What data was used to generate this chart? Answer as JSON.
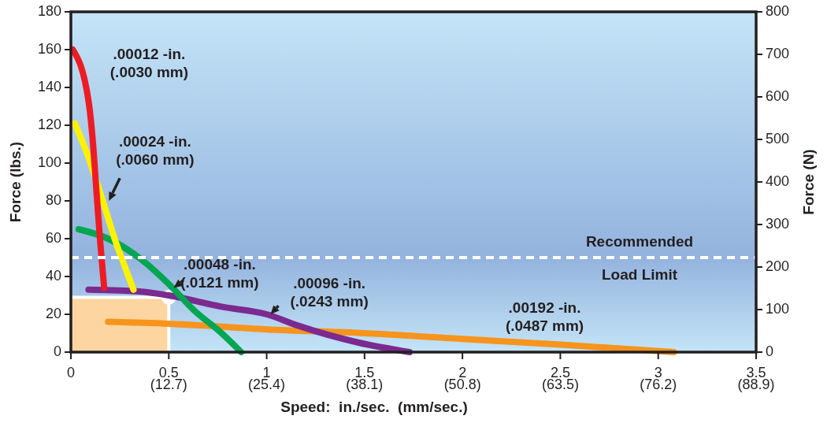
{
  "chart_data": {
    "type": "line",
    "xlabel": "Speed:  in./sec.  (mm/sec.)",
    "ylabel": "Force (lbs.)",
    "y2label": "Force (N)",
    "xlim": [
      0,
      3.5
    ],
    "ylim": [
      0,
      180
    ],
    "y2lim": [
      0,
      800
    ],
    "xticks": [
      0,
      0.5,
      1,
      1.5,
      2,
      2.5,
      3,
      3.5
    ],
    "x2lim": [
      0,
      88.9
    ],
    "x2ticks": [
      {
        "value": 12.7,
        "label": "(12.7)"
      },
      {
        "value": 25.4,
        "label": "(25.4)"
      },
      {
        "value": 38.1,
        "label": "(38.1)"
      },
      {
        "value": 50.8,
        "label": "(50.8)"
      },
      {
        "value": 63.5,
        "label": "(63.5)"
      },
      {
        "value": 76.2,
        "label": "(76.2)"
      },
      {
        "value": 88.9,
        "label": "(88.9)"
      }
    ],
    "yticks": [
      0,
      20,
      40,
      60,
      80,
      100,
      120,
      140,
      160,
      180
    ],
    "y2ticks": [
      0,
      100,
      200,
      300,
      400,
      500,
      600,
      700,
      800
    ],
    "grid": false,
    "marker": "none",
    "line_style": "solid",
    "ref_lines": [
      {
        "axis": "y",
        "value": 50,
        "label": "Recommended\nLoad Limit",
        "color": "#ffffff",
        "line_style": "dashed"
      }
    ],
    "series": [
      {
        "type": "area",
        "color": "#fcd5a0",
        "x": [
          0,
          0.5
        ],
        "values": [
          29,
          29
        ]
      },
      {
        "type": "scatter",
        "color": "#ffffff",
        "x": [
          0.5
        ],
        "values": [
          29
        ],
        "marker": "circle"
      },
      {
        "name": ".00192 -in.\n(.0487 mm)",
        "color": "#f7941d",
        "x": [
          0.19,
          0.5,
          1,
          1.5,
          2,
          2.5,
          3.08
        ],
        "values": [
          16,
          15,
          12,
          10,
          7,
          4,
          0
        ]
      },
      {
        "name": ".00096 -in.\n(.0243 mm)",
        "color": "#7b2a90",
        "x": [
          0.09,
          0.36,
          0.5,
          0.77,
          1,
          1.16,
          1.47,
          1.73
        ],
        "values": [
          33,
          32,
          30,
          24,
          20,
          14,
          5,
          0
        ]
      },
      {
        "name": ".00048 -in.\n(.0121 mm)",
        "color": "#00a651",
        "x": [
          0.04,
          0.19,
          0.36,
          0.5,
          0.63,
          0.77,
          0.87
        ],
        "values": [
          65,
          60,
          49,
          36,
          22,
          10,
          0
        ]
      },
      {
        "name": ".00024 -in.\n(.0060 mm)",
        "color": "#fff200",
        "x": [
          0.02,
          0.09,
          0.16,
          0.23,
          0.28,
          0.32
        ],
        "values": [
          121,
          103,
          81,
          58,
          44,
          33
        ]
      },
      {
        "name": ".00012 -in.\n(.0030 mm)",
        "color": "#ed1c24",
        "x": [
          0.01,
          0.09,
          0.11,
          0.13,
          0.15,
          0.17
        ],
        "values": [
          160,
          133,
          114,
          86,
          58,
          34
        ]
      }
    ]
  }
}
